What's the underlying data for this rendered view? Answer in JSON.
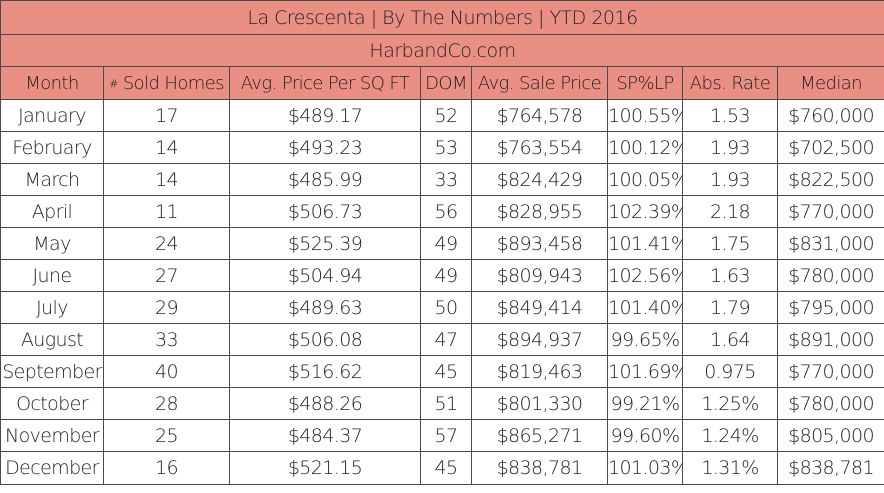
{
  "title": "La Crescenta |  By The Numbers  |  YTD 2016",
  "site": "HarbandCo.com",
  "columns": {
    "month": "Month",
    "sold_hash": "#",
    "sold": "Sold Homes",
    "price_sqft": "Avg. Price Per SQ FT",
    "dom": "DOM",
    "sale_price": "Avg. Sale Price",
    "splp": "SP%LP",
    "abs_rate": "Abs. Rate",
    "median": "Median"
  },
  "rows": [
    {
      "month": "January",
      "sold": "17",
      "price_sqft": "$489.17",
      "dom": "52",
      "sale_price": "$764,578",
      "splp": "100.55%",
      "abs_rate": "1.53",
      "median": "$760,000"
    },
    {
      "month": "February",
      "sold": "14",
      "price_sqft": "$493.23",
      "dom": "53",
      "sale_price": "$763,554",
      "splp": "100.12%",
      "abs_rate": "1.93",
      "median": "$702,500"
    },
    {
      "month": "March",
      "sold": "14",
      "price_sqft": "$485.99",
      "dom": "33",
      "sale_price": "$824,429",
      "splp": "100.05%",
      "abs_rate": "1.93",
      "median": "$822,500"
    },
    {
      "month": "April",
      "sold": "11",
      "price_sqft": "$506.73",
      "dom": "56",
      "sale_price": "$828,955",
      "splp": "102.39%",
      "abs_rate": "2.18",
      "median": "$770,000"
    },
    {
      "month": "May",
      "sold": "24",
      "price_sqft": "$525.39",
      "dom": "49",
      "sale_price": "$893,458",
      "splp": "101.41%",
      "abs_rate": "1.75",
      "median": "$831,000"
    },
    {
      "month": "June",
      "sold": "27",
      "price_sqft": "$504.94",
      "dom": "49",
      "sale_price": "$809,943",
      "splp": "102.56%",
      "abs_rate": "1.63",
      "median": "$780,000"
    },
    {
      "month": "July",
      "sold": "29",
      "price_sqft": "$489.63",
      "dom": "50",
      "sale_price": "$849,414",
      "splp": "101.40%",
      "abs_rate": "1.79",
      "median": "$795,000"
    },
    {
      "month": "August",
      "sold": "33",
      "price_sqft": "$506.08",
      "dom": "47",
      "sale_price": "$894,937",
      "splp": "99.65%",
      "abs_rate": "1.64",
      "median": "$891,000"
    },
    {
      "month": "September",
      "sold": "40",
      "price_sqft": "$516.62",
      "dom": "45",
      "sale_price": "$819,463",
      "splp": "101.69%",
      "abs_rate": "0.975",
      "median": "$770,000"
    },
    {
      "month": "October",
      "sold": "28",
      "price_sqft": "$488.26",
      "dom": "51",
      "sale_price": "$801,330",
      "splp": "99.21%",
      "abs_rate": "1.25%",
      "median": "$780,000"
    },
    {
      "month": "November",
      "sold": "25",
      "price_sqft": "$484.37",
      "dom": "57",
      "sale_price": "$865,271",
      "splp": "99.60%",
      "abs_rate": "1.24%",
      "median": "$805,000"
    },
    {
      "month": "December",
      "sold": "16",
      "price_sqft": "$521.15",
      "dom": "45",
      "sale_price": "$838,781",
      "splp": "101.03%",
      "abs_rate": "1.31%",
      "median": "$838,781"
    }
  ]
}
